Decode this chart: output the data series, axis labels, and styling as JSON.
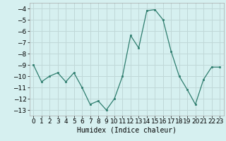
{
  "x": [
    0,
    1,
    2,
    3,
    4,
    5,
    6,
    7,
    8,
    9,
    10,
    11,
    12,
    13,
    14,
    15,
    16,
    17,
    18,
    19,
    20,
    21,
    22,
    23
  ],
  "y": [
    -9,
    -10.5,
    -10,
    -9.7,
    -10.5,
    -9.7,
    -11,
    -12.5,
    -12.2,
    -13,
    -12,
    -10,
    -6.4,
    -7.5,
    -4.2,
    -4.1,
    -5,
    -7.8,
    -10,
    -11.2,
    -12.5,
    -10.3,
    -9.2,
    -9.2
  ],
  "line_color": "#2e7d6e",
  "marker_color": "#2e7d6e",
  "bg_color": "#d6f0f0",
  "grid_color": "#c0d8d8",
  "xlabel": "Humidex (Indice chaleur)",
  "ylim": [
    -13.5,
    -3.5
  ],
  "xlim": [
    -0.5,
    23.5
  ],
  "yticks": [
    -13,
    -12,
    -11,
    -10,
    -9,
    -8,
    -7,
    -6,
    -5,
    -4
  ],
  "xticks": [
    0,
    1,
    2,
    3,
    4,
    5,
    6,
    7,
    8,
    9,
    10,
    11,
    12,
    13,
    14,
    15,
    16,
    17,
    18,
    19,
    20,
    21,
    22,
    23
  ],
  "xlabel_fontsize": 7,
  "tick_fontsize": 6.5
}
